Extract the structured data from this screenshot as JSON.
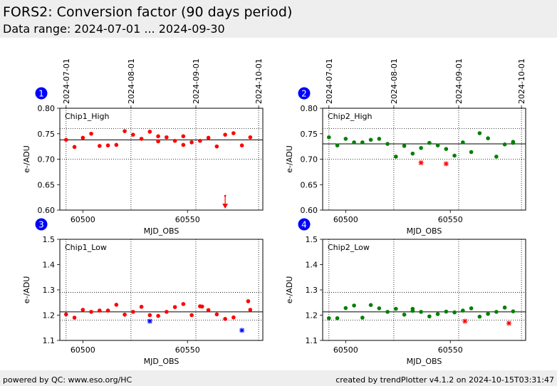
{
  "header": {
    "title": "FORS2: Conversion factor (90 days period)",
    "subtitle": "Data range: 2024-07-01 ... 2024-09-30"
  },
  "footer": {
    "left": "powered by QC: www.eso.org/HC",
    "right": "created by trendPlotter v4.1.2 on 2024-10-15T03:31:47"
  },
  "colors": {
    "chip1": "#ff0000",
    "chip2": "#008000",
    "outlier_blue": "#0000ff",
    "outlier_red": "#ff0000",
    "badge": "#0000ff"
  },
  "chart_data": [
    {
      "type": "scatter",
      "panel": "1",
      "label": "Chip1_High",
      "xlabel": "MJD_OBS",
      "ylabel": "e-/ADU",
      "xlim": [
        60489,
        60586
      ],
      "ylim": [
        0.6,
        0.8
      ],
      "xticks": [
        60500,
        60550
      ],
      "yticks": [
        0.6,
        0.65,
        0.7,
        0.75,
        0.8
      ],
      "ytick_labels": [
        "0.60",
        "0.65",
        "0.70",
        "0.75",
        "0.80"
      ],
      "mean": 0.738,
      "band": [
        0.7,
        0.76
      ],
      "date_ticks": [
        {
          "label": "2024-07-01",
          "x": 60492
        },
        {
          "label": "2024-08-01",
          "x": 60523
        },
        {
          "label": "2024-09-01",
          "x": 60554
        },
        {
          "label": "2024-10-01",
          "x": 60584
        }
      ],
      "marker_color": "chip1",
      "x": [
        60492,
        60496,
        60500,
        60504,
        60508,
        60512,
        60516,
        60520,
        60524,
        60528,
        60532,
        60536,
        60540,
        60544,
        60548,
        60552,
        60556,
        60560,
        60564,
        60568,
        60572,
        60576,
        60580
      ],
      "y": [
        0.738,
        0.724,
        0.742,
        0.75,
        0.726,
        0.727,
        0.728,
        0.755,
        0.748,
        0.74,
        0.754,
        0.745,
        0.743,
        0.736,
        0.745,
        0.733,
        0.736,
        0.742,
        0.725,
        0.748,
        0.751,
        0.727,
        0.743
      ],
      "extra_points": [
        {
          "x": 60548,
          "y": 0.728
        },
        {
          "x": 60536,
          "y": 0.735
        }
      ],
      "outliers": [],
      "offscale": [
        {
          "x": 60568,
          "y_from": 0.628
        }
      ]
    },
    {
      "type": "scatter",
      "panel": "2",
      "label": "Chip2_High",
      "xlabel": "MJD_OBS",
      "ylabel": "e-/ADU",
      "xlim": [
        60489,
        60586
      ],
      "ylim": [
        0.6,
        0.8
      ],
      "xticks": [
        60500,
        60550
      ],
      "yticks": [
        0.6,
        0.65,
        0.7,
        0.75,
        0.8
      ],
      "ytick_labels": [
        "0.60",
        "0.65",
        "0.70",
        "0.75",
        "0.80"
      ],
      "mean": 0.73,
      "band": [
        0.7,
        0.76
      ],
      "date_ticks": [
        {
          "label": "2024-07-01",
          "x": 60492
        },
        {
          "label": "2024-08-01",
          "x": 60523
        },
        {
          "label": "2024-09-01",
          "x": 60554
        },
        {
          "label": "2024-10-01",
          "x": 60584
        }
      ],
      "marker_color": "chip2",
      "x": [
        60492,
        60496,
        60500,
        60504,
        60508,
        60512,
        60516,
        60520,
        60524,
        60528,
        60532,
        60536,
        60540,
        60544,
        60548,
        60552,
        60556,
        60560,
        60564,
        60568,
        60572,
        60576,
        60580
      ],
      "y": [
        0.743,
        0.727,
        0.74,
        0.733,
        0.733,
        0.738,
        0.74,
        0.73,
        0.705,
        0.726,
        0.711,
        0.722,
        0.732,
        0.727,
        0.72,
        0.707,
        0.733,
        0.714,
        0.751,
        0.741,
        0.705,
        0.729,
        0.734
      ],
      "extra_points": [
        {
          "x": 60580,
          "y": 0.732
        }
      ],
      "outliers": [
        {
          "x": 60536,
          "y": 0.693,
          "color": "outlier_red"
        },
        {
          "x": 60548,
          "y": 0.691,
          "color": "outlier_red"
        }
      ],
      "offscale": []
    },
    {
      "type": "scatter",
      "panel": "3",
      "label": "Chip1_Low",
      "xlabel": "MJD_OBS",
      "ylabel": "e-/ADU",
      "xlim": [
        60489,
        60586
      ],
      "ylim": [
        1.1,
        1.5
      ],
      "xticks": [
        60500,
        60550
      ],
      "yticks": [
        1.1,
        1.2,
        1.3,
        1.4,
        1.5
      ],
      "ytick_labels": [
        "1.1",
        "1.2",
        "1.3",
        "1.4",
        "1.5"
      ],
      "mean": 1.213,
      "band": [
        1.18,
        1.29
      ],
      "date_ticks": [
        {
          "label": "2024-07-01",
          "x": 60492
        },
        {
          "label": "2024-08-01",
          "x": 60523
        },
        {
          "label": "2024-09-01",
          "x": 60554
        },
        {
          "label": "2024-10-01",
          "x": 60584
        }
      ],
      "marker_color": "chip1",
      "x": [
        60492,
        60496,
        60500,
        60504,
        60508,
        60512,
        60516,
        60520,
        60524,
        60528,
        60532,
        60536,
        60540,
        60544,
        60548,
        60552,
        60556,
        60560,
        60564,
        60568,
        60572,
        60580
      ],
      "y": [
        1.203,
        1.19,
        1.221,
        1.213,
        1.218,
        1.218,
        1.241,
        1.202,
        1.213,
        1.233,
        1.2,
        1.197,
        1.213,
        1.232,
        1.244,
        1.2,
        1.235,
        1.22,
        1.203,
        1.185,
        1.191,
        1.221
      ],
      "extra_points": [
        {
          "x": 60557,
          "y": 1.234
        },
        {
          "x": 60579,
          "y": 1.255
        }
      ],
      "outliers": [
        {
          "x": 60532,
          "y": 1.176,
          "color": "outlier_blue"
        },
        {
          "x": 60576,
          "y": 1.14,
          "color": "outlier_blue"
        }
      ],
      "offscale": []
    },
    {
      "type": "scatter",
      "panel": "4",
      "label": "Chip2_Low",
      "xlabel": "MJD_OBS",
      "ylabel": "e-/ADU",
      "xlim": [
        60489,
        60586
      ],
      "ylim": [
        1.1,
        1.5
      ],
      "xticks": [
        60500,
        60550
      ],
      "yticks": [
        1.1,
        1.2,
        1.3,
        1.4,
        1.5
      ],
      "ytick_labels": [
        "1.1",
        "1.2",
        "1.3",
        "1.4",
        "1.5"
      ],
      "mean": 1.213,
      "band": [
        1.18,
        1.29
      ],
      "date_ticks": [
        {
          "label": "2024-07-01",
          "x": 60492
        },
        {
          "label": "2024-08-01",
          "x": 60523
        },
        {
          "label": "2024-09-01",
          "x": 60554
        },
        {
          "label": "2024-10-01",
          "x": 60584
        }
      ],
      "marker_color": "chip2",
      "x": [
        60492,
        60496,
        60500,
        60504,
        60508,
        60512,
        60516,
        60520,
        60524,
        60528,
        60532,
        60536,
        60540,
        60544,
        60548,
        60552,
        60556,
        60560,
        60564,
        60568,
        60572,
        60576,
        60580
      ],
      "y": [
        1.188,
        1.188,
        1.228,
        1.238,
        1.19,
        1.24,
        1.227,
        1.213,
        1.225,
        1.202,
        1.217,
        1.213,
        1.195,
        1.204,
        1.214,
        1.211,
        1.218,
        1.227,
        1.194,
        1.205,
        1.213,
        1.23,
        1.215
      ],
      "extra_points": [
        {
          "x": 60532,
          "y": 1.225
        }
      ],
      "outliers": [
        {
          "x": 60557,
          "y": 1.176,
          "color": "outlier_red"
        },
        {
          "x": 60578,
          "y": 1.168,
          "color": "outlier_red"
        }
      ],
      "offscale": []
    }
  ]
}
